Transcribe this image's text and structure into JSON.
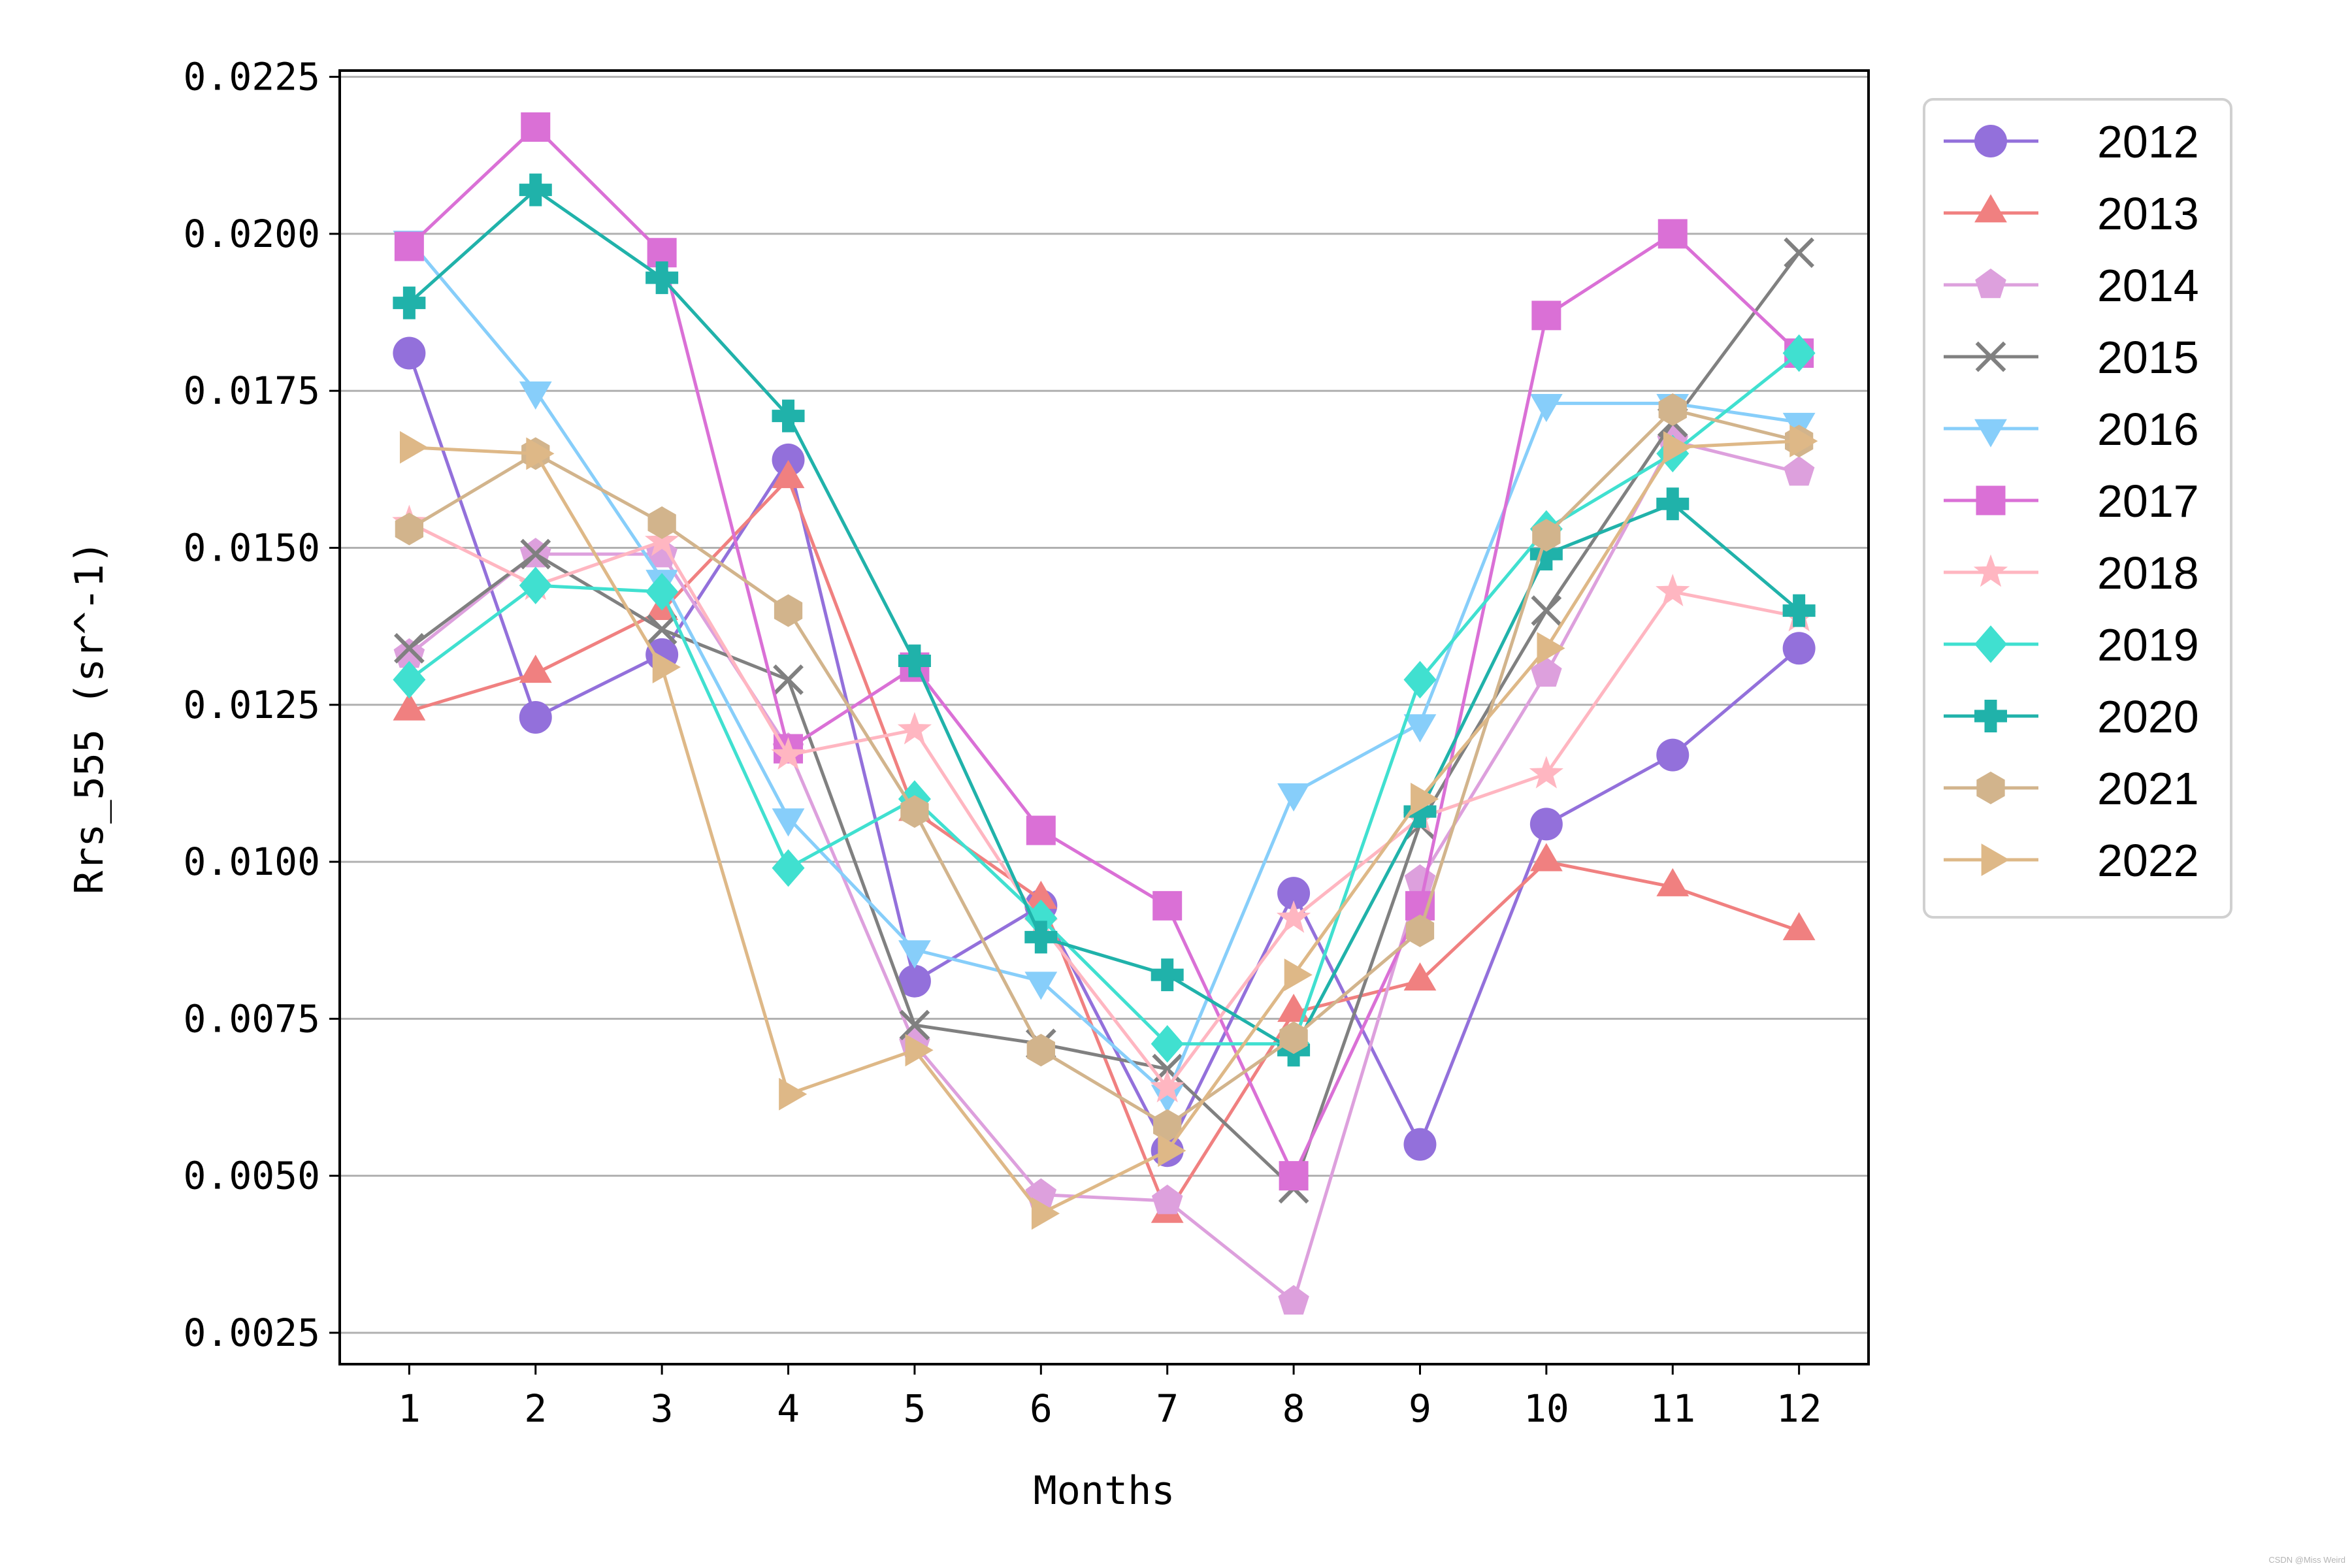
{
  "chart_data": {
    "type": "line",
    "title": "",
    "xlabel": "Months",
    "ylabel": "Rrs_555 (sr^-1)",
    "categories": [
      1,
      2,
      3,
      4,
      5,
      6,
      7,
      8,
      9,
      10,
      11,
      12
    ],
    "xlim": [
      0.45,
      12.55
    ],
    "ylim": [
      0.002,
      0.0226
    ],
    "y_ticks": [
      "0.0025",
      "0.0050",
      "0.0075",
      "0.0100",
      "0.0125",
      "0.0150",
      "0.0175",
      "0.0200",
      "0.0225"
    ],
    "x_ticks": [
      "1",
      "2",
      "3",
      "4",
      "5",
      "6",
      "7",
      "8",
      "9",
      "10",
      "11",
      "12"
    ],
    "grid": "horizontal",
    "legend_position": "outside-right-top",
    "series": [
      {
        "name": "2012",
        "color": "#9370DB",
        "marker": "circle",
        "values": [
          0.0181,
          0.0123,
          0.0133,
          0.0164,
          0.0081,
          0.0093,
          0.0054,
          0.0095,
          0.0055,
          0.0106,
          0.0117,
          0.0134
        ]
      },
      {
        "name": "2013",
        "color": "#F08080",
        "marker": "triangle-up",
        "values": [
          0.0124,
          0.013,
          0.014,
          0.0161,
          0.0108,
          0.0094,
          0.0044,
          0.0076,
          0.0081,
          0.01,
          0.0096,
          0.0089
        ]
      },
      {
        "name": "2014",
        "color": "#DDA0DD",
        "marker": "pentagon",
        "values": [
          0.0133,
          0.0149,
          0.0149,
          0.0118,
          0.0071,
          0.0047,
          0.0046,
          0.003,
          0.0097,
          0.013,
          0.0167,
          0.0162
        ]
      },
      {
        "name": "2015",
        "color": "#808080",
        "marker": "x",
        "values": [
          0.0134,
          0.0149,
          0.0137,
          0.0129,
          0.0074,
          0.0071,
          0.0067,
          0.0048,
          0.0106,
          0.014,
          0.017,
          0.0197
        ]
      },
      {
        "name": "2016",
        "color": "#87CEFA",
        "marker": "triangle-down",
        "values": [
          0.0199,
          0.0175,
          0.0145,
          0.0107,
          0.0086,
          0.0081,
          0.0063,
          0.0111,
          0.0122,
          0.0173,
          0.0173,
          0.017
        ]
      },
      {
        "name": "2017",
        "color": "#DA70D6",
        "marker": "square",
        "values": [
          0.0198,
          0.0217,
          0.0197,
          0.0118,
          0.0131,
          0.0105,
          0.0093,
          0.005,
          0.0093,
          0.0187,
          0.02,
          0.0181
        ]
      },
      {
        "name": "2018",
        "color": "#FFB6C1",
        "marker": "star",
        "values": [
          0.0154,
          0.0144,
          0.0151,
          0.0117,
          0.0121,
          0.009,
          0.0064,
          0.0091,
          0.0107,
          0.0114,
          0.0143,
          0.0139
        ]
      },
      {
        "name": "2019",
        "color": "#40E0D0",
        "marker": "diamond",
        "values": [
          0.0129,
          0.0144,
          0.0143,
          0.0099,
          0.011,
          0.0091,
          0.0071,
          0.0071,
          0.0129,
          0.0153,
          0.0165,
          0.0181
        ]
      },
      {
        "name": "2020",
        "color": "#20B2AA",
        "marker": "plus",
        "values": [
          0.0189,
          0.0207,
          0.0193,
          0.0171,
          0.0132,
          0.0088,
          0.0082,
          0.007,
          0.0108,
          0.0149,
          0.0157,
          0.014
        ]
      },
      {
        "name": "2021",
        "color": "#D2B48C",
        "marker": "hexagon",
        "values": [
          0.0153,
          0.0165,
          0.0154,
          0.014,
          0.0108,
          0.007,
          0.0058,
          0.0072,
          0.0089,
          0.0152,
          0.0172,
          0.0167
        ]
      },
      {
        "name": "2022",
        "color": "#DEB887",
        "marker": "triangle-right",
        "values": [
          0.0166,
          0.0165,
          0.0131,
          0.0063,
          0.007,
          0.0044,
          0.0054,
          0.0082,
          0.011,
          0.0134,
          0.0166,
          0.0167
        ]
      }
    ]
  },
  "watermark": "CSDN @Miss Weird"
}
